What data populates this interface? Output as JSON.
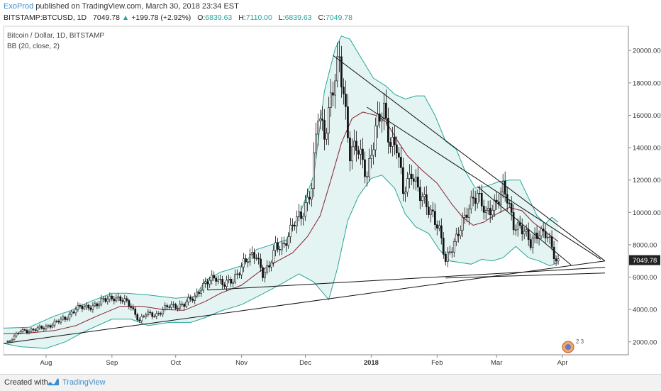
{
  "header": {
    "author": "ExoProd",
    "published": "published on TradingView.com, March 30, 2018 23:34 EST",
    "symbol": "BITSTAMP:BTCUSD, 1D",
    "last": "7049.78",
    "change_arrow": "▲",
    "change": "+199.78 (+2.92%)",
    "o_label": "O:",
    "o_val": "6839.63",
    "h_label": "H:",
    "h_val": "7110.00",
    "l_label": "L:",
    "l_val": "6839.63",
    "c_label": "C:",
    "c_val": "7049.78"
  },
  "legend": {
    "title": "Bitcoin / Dollar, 1D, BITSTAMP",
    "indicator": "BB (20, close, 2)"
  },
  "footer": {
    "created_with": "Created with",
    "brand": "TradingView"
  },
  "colors": {
    "band": "#26a69a",
    "band_fill": "#e3f4f2",
    "basis": "#8b1e2e",
    "candle": "#111111",
    "trendline": "#111111",
    "price_badge": "#222222"
  },
  "chart_data": {
    "type": "candlestick",
    "title": "Bitcoin / Dollar, 1D, BITSTAMP",
    "indicator": "BB (20, close, 2)",
    "y_ticks": [
      2000,
      4000,
      6000,
      8000,
      10000,
      12000,
      14000,
      16000,
      18000,
      20000
    ],
    "y_tick_labels": [
      "2000.00",
      "4000.00",
      "6000.00",
      "8000.00",
      "10000.00",
      "12000.00",
      "14000.00",
      "16000.00",
      "18000.00",
      "20000.00"
    ],
    "ylim": [
      1200,
      21500
    ],
    "x_ticks": [
      "2017-08-01",
      "2017-09-01",
      "2017-10-01",
      "2017-11-01",
      "2017-12-01",
      "2018-01-01",
      "2018-02-01",
      "2018-03-01",
      "2018-04-01"
    ],
    "x_tick_labels": [
      "Aug",
      "Sep",
      "Oct",
      "Nov",
      "Dec",
      "2018",
      "Feb",
      "Mar",
      "Apr"
    ],
    "xlim": [
      "2017-07-12",
      "2018-05-02"
    ],
    "last_price": "7049.78",
    "close_path": [
      [
        "2017-07-14",
        2000
      ],
      [
        "2017-07-20",
        2650
      ],
      [
        "2017-07-31",
        2850
      ],
      [
        "2017-08-05",
        3200
      ],
      [
        "2017-08-10",
        3400
      ],
      [
        "2017-08-15",
        4100
      ],
      [
        "2017-08-20",
        4100
      ],
      [
        "2017-08-25",
        4350
      ],
      [
        "2017-08-31",
        4700
      ],
      [
        "2017-09-02",
        4800
      ],
      [
        "2017-09-08",
        4400
      ],
      [
        "2017-09-10",
        4200
      ],
      [
        "2017-09-14",
        3300
      ],
      [
        "2017-09-17",
        3700
      ],
      [
        "2017-09-22",
        3700
      ],
      [
        "2017-09-28",
        4200
      ],
      [
        "2017-10-05",
        4300
      ],
      [
        "2017-10-10",
        4800
      ],
      [
        "2017-10-13",
        5400
      ],
      [
        "2017-10-20",
        6000
      ],
      [
        "2017-10-24",
        5600
      ],
      [
        "2017-10-28",
        5700
      ],
      [
        "2017-11-02",
        7000
      ],
      [
        "2017-11-08",
        7300
      ],
      [
        "2017-11-11",
        6300
      ],
      [
        "2017-11-14",
        6600
      ],
      [
        "2017-11-17",
        7800
      ],
      [
        "2017-11-21",
        8100
      ],
      [
        "2017-11-26",
        9300
      ],
      [
        "2017-11-29",
        9900
      ],
      [
        "2017-12-04",
        11500
      ],
      [
        "2017-12-07",
        16000
      ],
      [
        "2017-12-10",
        15000
      ],
      [
        "2017-12-13",
        17000
      ],
      [
        "2017-12-17",
        19200
      ],
      [
        "2017-12-19",
        17500
      ],
      [
        "2017-12-22",
        13800
      ],
      [
        "2017-12-25",
        13900
      ],
      [
        "2017-12-30",
        12500
      ],
      [
        "2018-01-03",
        15000
      ],
      [
        "2018-01-07",
        16300
      ],
      [
        "2018-01-10",
        14500
      ],
      [
        "2018-01-13",
        14000
      ],
      [
        "2018-01-16",
        11200
      ],
      [
        "2018-01-20",
        12700
      ],
      [
        "2018-01-24",
        10900
      ],
      [
        "2018-01-30",
        10000
      ],
      [
        "2018-02-02",
        8800
      ],
      [
        "2018-02-05",
        6900
      ],
      [
        "2018-02-07",
        7700
      ],
      [
        "2018-02-10",
        8500
      ],
      [
        "2018-02-14",
        9500
      ],
      [
        "2018-02-18",
        11100
      ],
      [
        "2018-02-20",
        11200
      ],
      [
        "2018-02-24",
        9700
      ],
      [
        "2018-02-27",
        10400
      ],
      [
        "2018-03-02",
        11000
      ],
      [
        "2018-03-04",
        11400
      ],
      [
        "2018-03-06",
        10700
      ],
      [
        "2018-03-09",
        9300
      ],
      [
        "2018-03-12",
        9200
      ],
      [
        "2018-03-17",
        8000
      ],
      [
        "2018-03-19",
        8600
      ],
      [
        "2018-03-21",
        8900
      ],
      [
        "2018-03-24",
        8600
      ],
      [
        "2018-03-27",
        7800
      ],
      [
        "2018-03-29",
        7000
      ],
      [
        "2018-03-30",
        7050
      ]
    ],
    "bb_upper": [
      [
        "2017-07-12",
        2850
      ],
      [
        "2017-07-24",
        2900
      ],
      [
        "2017-08-05",
        3600
      ],
      [
        "2017-08-12",
        3900
      ],
      [
        "2017-08-22",
        4500
      ],
      [
        "2017-09-01",
        5000
      ],
      [
        "2017-09-08",
        5000
      ],
      [
        "2017-09-18",
        4900
      ],
      [
        "2017-10-01",
        4700
      ],
      [
        "2017-10-10",
        4800
      ],
      [
        "2017-10-15",
        5800
      ],
      [
        "2017-10-22",
        6300
      ],
      [
        "2017-11-01",
        6700
      ],
      [
        "2017-11-08",
        7700
      ],
      [
        "2017-11-15",
        8000
      ],
      [
        "2017-11-22",
        8300
      ],
      [
        "2017-11-29",
        10100
      ],
      [
        "2017-12-05",
        12300
      ],
      [
        "2017-12-10",
        17500
      ],
      [
        "2017-12-15",
        20100
      ],
      [
        "2017-12-18",
        20900
      ],
      [
        "2017-12-22",
        20700
      ],
      [
        "2017-12-27",
        19600
      ],
      [
        "2018-01-02",
        18300
      ],
      [
        "2018-01-08",
        17800
      ],
      [
        "2018-01-12",
        17300
      ],
      [
        "2018-01-17",
        17000
      ],
      [
        "2018-01-22",
        17200
      ],
      [
        "2018-01-26",
        17200
      ],
      [
        "2018-01-31",
        16000
      ],
      [
        "2018-02-05",
        14400
      ],
      [
        "2018-02-10",
        13900
      ],
      [
        "2018-02-14",
        12600
      ],
      [
        "2018-02-19",
        11500
      ],
      [
        "2018-02-24",
        11600
      ],
      [
        "2018-03-02",
        11900
      ],
      [
        "2018-03-07",
        12000
      ],
      [
        "2018-03-12",
        12000
      ],
      [
        "2018-03-16",
        10900
      ],
      [
        "2018-03-20",
        9800
      ],
      [
        "2018-03-24",
        9300
      ],
      [
        "2018-03-27",
        9700
      ],
      [
        "2018-03-30",
        9400
      ]
    ],
    "bb_basis": [
      [
        "2017-07-12",
        2500
      ],
      [
        "2017-07-24",
        2550
      ],
      [
        "2017-08-05",
        2700
      ],
      [
        "2017-08-15",
        3000
      ],
      [
        "2017-08-25",
        3600
      ],
      [
        "2017-09-05",
        4200
      ],
      [
        "2017-09-15",
        4200
      ],
      [
        "2017-09-25",
        4000
      ],
      [
        "2017-10-05",
        3950
      ],
      [
        "2017-10-15",
        4500
      ],
      [
        "2017-10-22",
        5000
      ],
      [
        "2017-11-01",
        5500
      ],
      [
        "2017-11-10",
        6400
      ],
      [
        "2017-11-18",
        7000
      ],
      [
        "2017-11-25",
        7500
      ],
      [
        "2017-12-02",
        8500
      ],
      [
        "2017-12-08",
        9800
      ],
      [
        "2017-12-13",
        12000
      ],
      [
        "2017-12-18",
        14300
      ],
      [
        "2017-12-23",
        15800
      ],
      [
        "2017-12-28",
        16200
      ],
      [
        "2018-01-03",
        16000
      ],
      [
        "2018-01-08",
        15600
      ],
      [
        "2018-01-13",
        14500
      ],
      [
        "2018-01-18",
        13500
      ],
      [
        "2018-01-25",
        12600
      ],
      [
        "2018-02-01",
        11800
      ],
      [
        "2018-02-08",
        10500
      ],
      [
        "2018-02-13",
        9700
      ],
      [
        "2018-02-18",
        9200
      ],
      [
        "2018-02-23",
        9400
      ],
      [
        "2018-03-01",
        9900
      ],
      [
        "2018-03-07",
        10300
      ],
      [
        "2018-03-13",
        10100
      ],
      [
        "2018-03-18",
        9400
      ],
      [
        "2018-03-23",
        8900
      ],
      [
        "2018-03-30",
        8200
      ]
    ],
    "bb_lower": [
      [
        "2017-07-12",
        1900
      ],
      [
        "2017-07-20",
        1700
      ],
      [
        "2017-08-01",
        1600
      ],
      [
        "2017-08-10",
        2000
      ],
      [
        "2017-08-20",
        2700
      ],
      [
        "2017-09-01",
        3400
      ],
      [
        "2017-09-10",
        3400
      ],
      [
        "2017-09-18",
        3000
      ],
      [
        "2017-09-28",
        3200
      ],
      [
        "2017-10-08",
        3200
      ],
      [
        "2017-10-15",
        3500
      ],
      [
        "2017-10-22",
        3900
      ],
      [
        "2017-11-01",
        4300
      ],
      [
        "2017-11-10",
        4900
      ],
      [
        "2017-11-20",
        5600
      ],
      [
        "2017-11-28",
        6200
      ],
      [
        "2017-12-05",
        5700
      ],
      [
        "2017-12-12",
        4600
      ],
      [
        "2017-12-16",
        6500
      ],
      [
        "2017-12-21",
        9500
      ],
      [
        "2017-12-26",
        11000
      ],
      [
        "2018-01-01",
        12100
      ],
      [
        "2018-01-06",
        12300
      ],
      [
        "2018-01-12",
        11500
      ],
      [
        "2018-01-17",
        9900
      ],
      [
        "2018-01-22",
        9100
      ],
      [
        "2018-01-28",
        8700
      ],
      [
        "2018-02-02",
        7700
      ],
      [
        "2018-02-07",
        7000
      ],
      [
        "2018-02-12",
        6900
      ],
      [
        "2018-02-17",
        6800
      ],
      [
        "2018-02-22",
        7100
      ],
      [
        "2018-02-27",
        7000
      ],
      [
        "2018-03-04",
        7200
      ],
      [
        "2018-03-10",
        7900
      ],
      [
        "2018-03-16",
        7200
      ],
      [
        "2018-03-21",
        7000
      ],
      [
        "2018-03-26",
        6700
      ],
      [
        "2018-03-30",
        6900
      ]
    ],
    "trendlines": [
      {
        "from": [
          "2017-07-12",
          1900
        ],
        "to": [
          "2018-04-21",
          7000
        ]
      },
      {
        "from": [
          "2017-10-16",
          5200
        ],
        "to": [
          "2018-04-21",
          6600
        ]
      },
      {
        "from": [
          "2018-02-05",
          5950
        ],
        "to": [
          "2018-04-21",
          6250
        ]
      },
      {
        "from": [
          "2017-12-14",
          19700
        ],
        "to": [
          "2018-04-21",
          7000
        ]
      },
      {
        "from": [
          "2017-12-30",
          16500
        ],
        "to": [
          "2018-04-19",
          7100
        ]
      },
      {
        "from": [
          "2018-02-20",
          11600
        ],
        "to": [
          "2018-04-05",
          6750
        ]
      }
    ],
    "bracket": {
      "x_start": "2017-10-16",
      "y": 5200,
      "top": 5900
    },
    "grid": false,
    "legend_position": "top-left",
    "events_badge": "2 3"
  }
}
